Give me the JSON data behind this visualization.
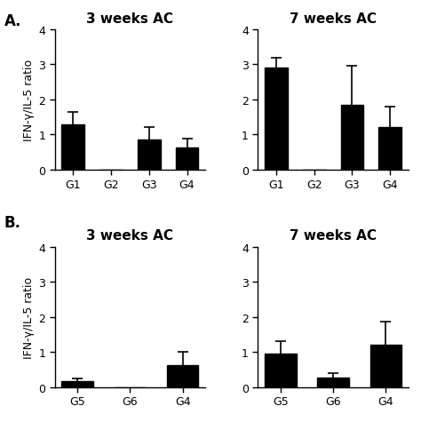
{
  "panel_A": {
    "title_left": "3 weeks AC",
    "title_right": "7 weeks AC",
    "left": {
      "categories": [
        "G1",
        "G2",
        "G3",
        "G4"
      ],
      "values": [
        1.3,
        0.0,
        0.85,
        0.62
      ],
      "errors": [
        0.35,
        0.0,
        0.35,
        0.25
      ]
    },
    "right": {
      "categories": [
        "G1",
        "G2",
        "G3",
        "G4"
      ],
      "values": [
        2.9,
        0.0,
        1.85,
        1.2
      ],
      "errors": [
        0.3,
        0.0,
        1.1,
        0.6
      ]
    }
  },
  "panel_B": {
    "title_left": "3 weeks AC",
    "title_right": "7 weeks AC",
    "left": {
      "categories": [
        "G5",
        "G6",
        "G4"
      ],
      "values": [
        0.17,
        0.0,
        0.62
      ],
      "errors": [
        0.07,
        0.0,
        0.38
      ]
    },
    "right": {
      "categories": [
        "G5",
        "G6",
        "G4"
      ],
      "values": [
        0.95,
        0.27,
        1.2
      ],
      "errors": [
        0.35,
        0.13,
        0.65
      ]
    }
  },
  "ylabel": "IFN-γ/IL-5 ratio",
  "ylim": [
    0,
    4
  ],
  "yticks": [
    0,
    1,
    2,
    3,
    4
  ],
  "bar_color": "#000000",
  "bar_width": 0.6,
  "label_A": "A.",
  "label_B": "B.",
  "title_fontsize": 11,
  "ylabel_fontsize": 9,
  "tick_fontsize": 9,
  "label_fontsize": 12
}
